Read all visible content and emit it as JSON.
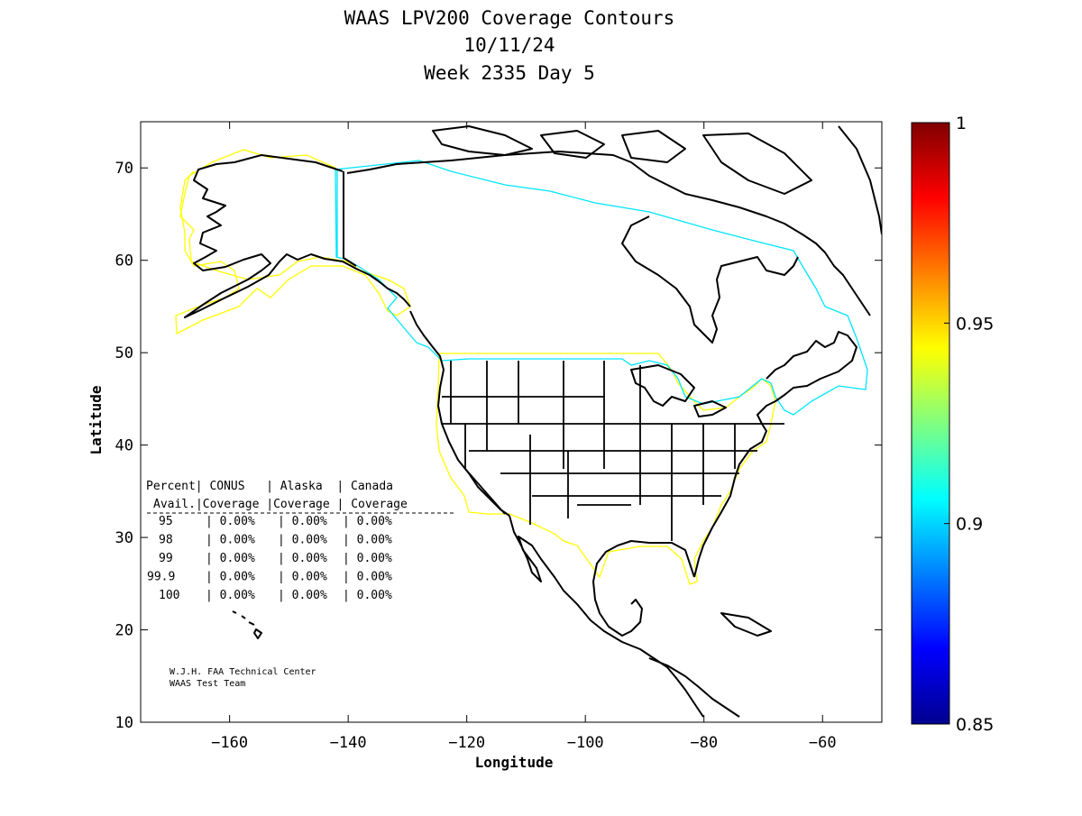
{
  "title": {
    "line1": "WAAS LPV200 Coverage Contours",
    "line2": "10/11/24",
    "line3": "Week 2335 Day 5"
  },
  "map": {
    "xlabel": "Longitude",
    "ylabel": "Latitude",
    "xlim": [
      -175,
      -50
    ],
    "ylim": [
      10,
      75
    ],
    "xticks": [
      -160,
      -140,
      -120,
      -100,
      -80,
      -60
    ],
    "yticks": [
      10,
      20,
      30,
      40,
      50,
      60,
      70
    ],
    "contour_colors": {
      "yellow": "#ffff00",
      "cyan": "#00e5ff",
      "land": "#000000"
    }
  },
  "colorbar": {
    "min": 0.85,
    "max": 1,
    "ticks": [
      "1",
      "0.95",
      "0.9",
      "0.85"
    ],
    "colormap": [
      "#00008f",
      "#0000ff",
      "#0080ff",
      "#00ffff",
      "#80ff80",
      "#ffff00",
      "#ff8000",
      "#ff0000",
      "#800000"
    ]
  },
  "table": {
    "header1": [
      "Percent",
      "CONUS",
      "Alaska",
      "Canada"
    ],
    "header2": [
      "Avail.",
      "Coverage",
      "Coverage",
      "Coverage"
    ],
    "rows": [
      [
        "95",
        "0.00%",
        "0.00%",
        "0.00%"
      ],
      [
        "98",
        "0.00%",
        "0.00%",
        "0.00%"
      ],
      [
        "99",
        "0.00%",
        "0.00%",
        "0.00%"
      ],
      [
        "99.9",
        "0.00%",
        "0.00%",
        "0.00%"
      ],
      [
        "100",
        "0.00%",
        "0.00%",
        "0.00%"
      ]
    ]
  },
  "credit": {
    "line1": "W.J.H. FAA Technical Center",
    "line2": "WAAS Test Team"
  }
}
